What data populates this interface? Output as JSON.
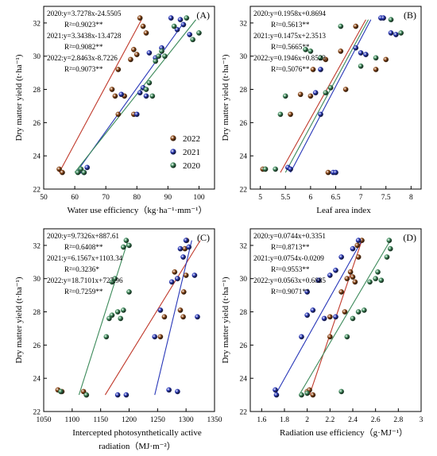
{
  "colors": {
    "2022": "#8B4513",
    "2021": "#2736B8",
    "2020": "#3C8A5A",
    "line2022": "#C0392B"
  },
  "chart_data": [
    {
      "type": "scatter",
      "panel_label": "(A)",
      "xlabel": "Water use efficiency（kg·ha⁻¹·mm⁻¹）",
      "ylabel": "Dry matter yield (t·ha⁻¹)",
      "xlim": [
        50,
        105
      ],
      "ylim": [
        22,
        33
      ],
      "xticks": [
        50,
        60,
        70,
        80,
        90,
        100
      ],
      "yticks": [
        22,
        24,
        26,
        28,
        30,
        32
      ],
      "equations": [
        {
          "series": "2020",
          "eq": "2020:y=3.7278x-24.5505",
          "r2": "R²=0.9023**"
        },
        {
          "series": "2021",
          "eq": "2021:y=3.3438x-13.4728",
          "r2": "R²=0.9082**"
        },
        {
          "series": "2022",
          "eq": "2022:y=2.8463x-8.7226",
          "r2": "R²=0.9073**"
        }
      ],
      "legend": [
        "2022",
        "2021",
        "2020"
      ],
      "series": [
        {
          "name": "2022",
          "lines": [
            55,
            23.0,
            81.5,
            32.2
          ],
          "points": [
            [
              55,
              23.2
            ],
            [
              56,
              23.0
            ],
            [
              72,
              28.0
            ],
            [
              73,
              27.6
            ],
            [
              74,
              29.2
            ],
            [
              78,
              29.8
            ],
            [
              79,
              30.4
            ],
            [
              80,
              30.1
            ],
            [
              81,
              32.3
            ],
            [
              82,
              31.8
            ],
            [
              83,
              31.4
            ],
            [
              76,
              27.6
            ],
            [
              74,
              26.5
            ],
            [
              79,
              26.5
            ]
          ]
        },
        {
          "name": "2021",
          "lines": [
            60.5,
            23.0,
            95,
            32.0
          ],
          "points": [
            [
              62,
              23.1
            ],
            [
              63,
              23.0
            ],
            [
              64,
              23.3
            ],
            [
              80,
              26.5
            ],
            [
              81,
              27.8
            ],
            [
              82,
              28.1
            ],
            [
              83,
              27.6
            ],
            [
              84,
              30.2
            ],
            [
              86,
              29.9
            ],
            [
              88,
              30.5
            ],
            [
              91,
              32.3
            ],
            [
              93,
              31.6
            ],
            [
              94,
              32.2
            ],
            [
              95,
              31.9
            ],
            [
              97,
              31.3
            ],
            [
              75,
              27.7
            ]
          ]
        },
        {
          "name": "2020",
          "lines": [
            60,
            23.0,
            99,
            32.2
          ],
          "points": [
            [
              61,
              23.0
            ],
            [
              62,
              23.2
            ],
            [
              63,
              23.0
            ],
            [
              83,
              28.0
            ],
            [
              84,
              28.4
            ],
            [
              86,
              29.7
            ],
            [
              87,
              30.0
            ],
            [
              88,
              30.3
            ],
            [
              89,
              30.0
            ],
            [
              92,
              31.8
            ],
            [
              96,
              32.3
            ],
            [
              100,
              31.4
            ],
            [
              98,
              31.0
            ],
            [
              85,
              27.6
            ]
          ]
        }
      ]
    },
    {
      "type": "scatter",
      "panel_label": "(B)",
      "xlabel": "Leaf area index",
      "ylabel": "Dry matter yield (t·ha⁻¹)",
      "xlim": [
        4.8,
        8.2
      ],
      "ylim": [
        22,
        33
      ],
      "xticks": [
        5.0,
        5.5,
        6.0,
        6.5,
        7.0,
        7.5,
        8.0
      ],
      "yticks": [
        22,
        24,
        26,
        28,
        30,
        32
      ],
      "equations": [
        {
          "series": "2020",
          "eq": "2020:y=0.1958x+0.8694",
          "r2": "R²=0.5613**"
        },
        {
          "series": "2021",
          "eq": "2021:y=0.1475x+2.3513",
          "r2": "R²=0.5665**"
        },
        {
          "series": "2022",
          "eq": "2022:y=0.1946x+0.8523",
          "r2": "R²=0.5076**"
        }
      ],
      "series": [
        {
          "name": "2022",
          "lines": [
            5.4,
            23.0,
            7.1,
            32.2
          ],
          "points": [
            [
              5.05,
              23.2
            ],
            [
              5.1,
              23.2
            ],
            [
              5.6,
              26.5
            ],
            [
              5.8,
              27.7
            ],
            [
              6.0,
              27.6
            ],
            [
              6.05,
              29.2
            ],
            [
              6.3,
              29.8
            ],
            [
              6.35,
              23.0
            ],
            [
              6.7,
              28.0
            ],
            [
              6.9,
              31.8
            ],
            [
              7.3,
              29.2
            ],
            [
              7.5,
              29.8
            ],
            [
              6.6,
              30.3
            ]
          ]
        },
        {
          "name": "2021",
          "lines": [
            5.6,
            23.0,
            7.2,
            32.2
          ],
          "points": [
            [
              5.55,
              23.3
            ],
            [
              5.6,
              23.2
            ],
            [
              6.45,
              23.0
            ],
            [
              6.5,
              23.0
            ],
            [
              6.1,
              27.8
            ],
            [
              6.2,
              26.5
            ],
            [
              6.9,
              30.5
            ],
            [
              7.0,
              30.2
            ],
            [
              7.1,
              30.1
            ],
            [
              7.4,
              32.3
            ],
            [
              7.45,
              32.3
            ],
            [
              7.6,
              31.4
            ],
            [
              7.7,
              31.3
            ],
            [
              6.2,
              29.2
            ]
          ]
        },
        {
          "name": "2020",
          "lines": [
            5.5,
            23.0,
            7.15,
            32.2
          ],
          "points": [
            [
              5.1,
              23.2
            ],
            [
              5.3,
              23.2
            ],
            [
              5.4,
              26.5
            ],
            [
              5.5,
              27.6
            ],
            [
              5.9,
              30.4
            ],
            [
              6.0,
              30.3
            ],
            [
              6.2,
              29.9
            ],
            [
              6.3,
              27.8
            ],
            [
              6.4,
              28.1
            ],
            [
              6.6,
              31.8
            ],
            [
              7.0,
              29.4
            ],
            [
              7.3,
              29.9
            ],
            [
              7.6,
              32.2
            ],
            [
              7.8,
              31.4
            ]
          ]
        }
      ]
    },
    {
      "type": "scatter",
      "panel_label": "(C)",
      "xlabel": "Intercepted photosynthetically active radiation（MJ·m⁻²）",
      "ylabel": "Dry matter yield (t·ha⁻¹)",
      "xlim": [
        1050,
        1350
      ],
      "ylim": [
        22,
        33
      ],
      "xticks": [
        1050,
        1100,
        1150,
        1200,
        1250,
        1300,
        1350
      ],
      "yticks": [
        22,
        24,
        26,
        28,
        30,
        32
      ],
      "equations": [
        {
          "series": "2020",
          "eq": "2020:y=9.7326x+887.61",
          "r2": "R²=0.6408**"
        },
        {
          "series": "2021",
          "eq": "2021:y=6.1567x+1103.34",
          "r2": "R²=0.3236*"
        },
        {
          "series": "2022",
          "eq": "2022:y=18.7101x+727.96",
          "r2": "R²=0.7259**"
        }
      ],
      "series": [
        {
          "name": "2022",
          "lines": [
            1158,
            23.0,
            1325,
            32.3
          ],
          "points": [
            [
              1075,
              23.3
            ],
            [
              1082,
              23.2
            ],
            [
              1120,
              23.2
            ],
            [
              1125,
              23.0
            ],
            [
              1255,
              26.5
            ],
            [
              1262,
              27.7
            ],
            [
              1280,
              30.4
            ],
            [
              1290,
              28.1
            ],
            [
              1295,
              27.7
            ],
            [
              1296,
              29.2
            ],
            [
              1300,
              30.2
            ],
            [
              1301,
              32.3
            ],
            [
              1298,
              31.8
            ],
            [
              1285,
              30.0
            ]
          ]
        },
        {
          "name": "2021",
          "lines": [
            1245,
            23.0,
            1310,
            32.3
          ],
          "points": [
            [
              1180,
              23.0
            ],
            [
              1195,
              23.0
            ],
            [
              1270,
              23.3
            ],
            [
              1285,
              23.2
            ],
            [
              1245,
              26.5
            ],
            [
              1255,
              28.1
            ],
            [
              1275,
              29.8
            ],
            [
              1285,
              30.0
            ],
            [
              1290,
              31.8
            ],
            [
              1295,
              31.3
            ],
            [
              1300,
              32.3
            ],
            [
              1305,
              31.9
            ],
            [
              1315,
              30.2
            ],
            [
              1320,
              27.7
            ]
          ]
        },
        {
          "name": "2020",
          "lines": [
            1112,
            23.0,
            1198,
            32.3
          ],
          "points": [
            [
              1080,
              23.2
            ],
            [
              1125,
              23.0
            ],
            [
              1160,
              26.5
            ],
            [
              1165,
              27.6
            ],
            [
              1170,
              29.8
            ],
            [
              1175,
              30.0
            ],
            [
              1180,
              28.0
            ],
            [
              1185,
              27.6
            ],
            [
              1190,
              31.9
            ],
            [
              1195,
              32.3
            ],
            [
              1200,
              29.2
            ],
            [
              1170,
              27.8
            ],
            [
              1190,
              28.1
            ],
            [
              1200,
              32.0
            ]
          ]
        }
      ]
    },
    {
      "type": "scatter",
      "panel_label": "(D)",
      "xlabel": "Radiation use efficiency（g·MJ⁻¹）",
      "ylabel": "Dry matter yield (t·ha⁻¹)",
      "xlim": [
        1.5,
        3.0
      ],
      "ylim": [
        22,
        33
      ],
      "xticks": [
        1.6,
        1.8,
        2.0,
        2.2,
        2.4,
        2.6,
        2.8,
        3.0
      ],
      "yticks": [
        22,
        24,
        26,
        28,
        30,
        32
      ],
      "equations": [
        {
          "series": "2020",
          "eq": "2020:y=0.0744x+0.3351",
          "r2": "R²=0.8713**"
        },
        {
          "series": "2021",
          "eq": "2021:y=0.0754x-0.0209",
          "r2": "R²=0.9553**"
        },
        {
          "series": "2022",
          "eq": "2022:y=0.0563x+0.6885",
          "r2": "R²=0.9071**"
        }
      ],
      "series": [
        {
          "name": "2022",
          "lines": [
            2.02,
            23.0,
            2.48,
            32.3
          ],
          "points": [
            [
              2.0,
              23.2
            ],
            [
              2.02,
              23.3
            ],
            [
              2.05,
              23.0
            ],
            [
              2.2,
              27.7
            ],
            [
              2.3,
              29.2
            ],
            [
              2.35,
              30.0
            ],
            [
              2.38,
              30.4
            ],
            [
              2.4,
              30.1
            ],
            [
              2.42,
              29.8
            ],
            [
              2.44,
              32.0
            ],
            [
              2.48,
              32.3
            ],
            [
              2.45,
              31.3
            ],
            [
              2.2,
              26.5
            ],
            [
              2.33,
              28.0
            ]
          ]
        },
        {
          "name": "2021",
          "lines": [
            1.72,
            23.0,
            2.48,
            32.3
          ],
          "points": [
            [
              1.72,
              23.3
            ],
            [
              1.73,
              23.0
            ],
            [
              1.95,
              26.5
            ],
            [
              2.0,
              27.8
            ],
            [
              2.05,
              28.1
            ],
            [
              2.1,
              29.9
            ],
            [
              2.2,
              30.2
            ],
            [
              2.25,
              30.5
            ],
            [
              2.3,
              31.3
            ],
            [
              2.4,
              31.8
            ],
            [
              2.45,
              32.3
            ],
            [
              2.0,
              29.2
            ],
            [
              2.25,
              27.7
            ],
            [
              2.15,
              27.6
            ]
          ]
        },
        {
          "name": "2020",
          "lines": [
            1.93,
            23.0,
            2.73,
            32.3
          ],
          "points": [
            [
              1.95,
              23.0
            ],
            [
              2.0,
              23.1
            ],
            [
              2.3,
              23.2
            ],
            [
              2.35,
              26.5
            ],
            [
              2.45,
              28.0
            ],
            [
              2.5,
              28.1
            ],
            [
              2.55,
              29.8
            ],
            [
              2.6,
              30.0
            ],
            [
              2.62,
              30.4
            ],
            [
              2.7,
              31.3
            ],
            [
              2.72,
              32.3
            ],
            [
              2.73,
              31.8
            ],
            [
              2.4,
              27.6
            ],
            [
              2.65,
              29.9
            ]
          ]
        }
      ]
    }
  ]
}
